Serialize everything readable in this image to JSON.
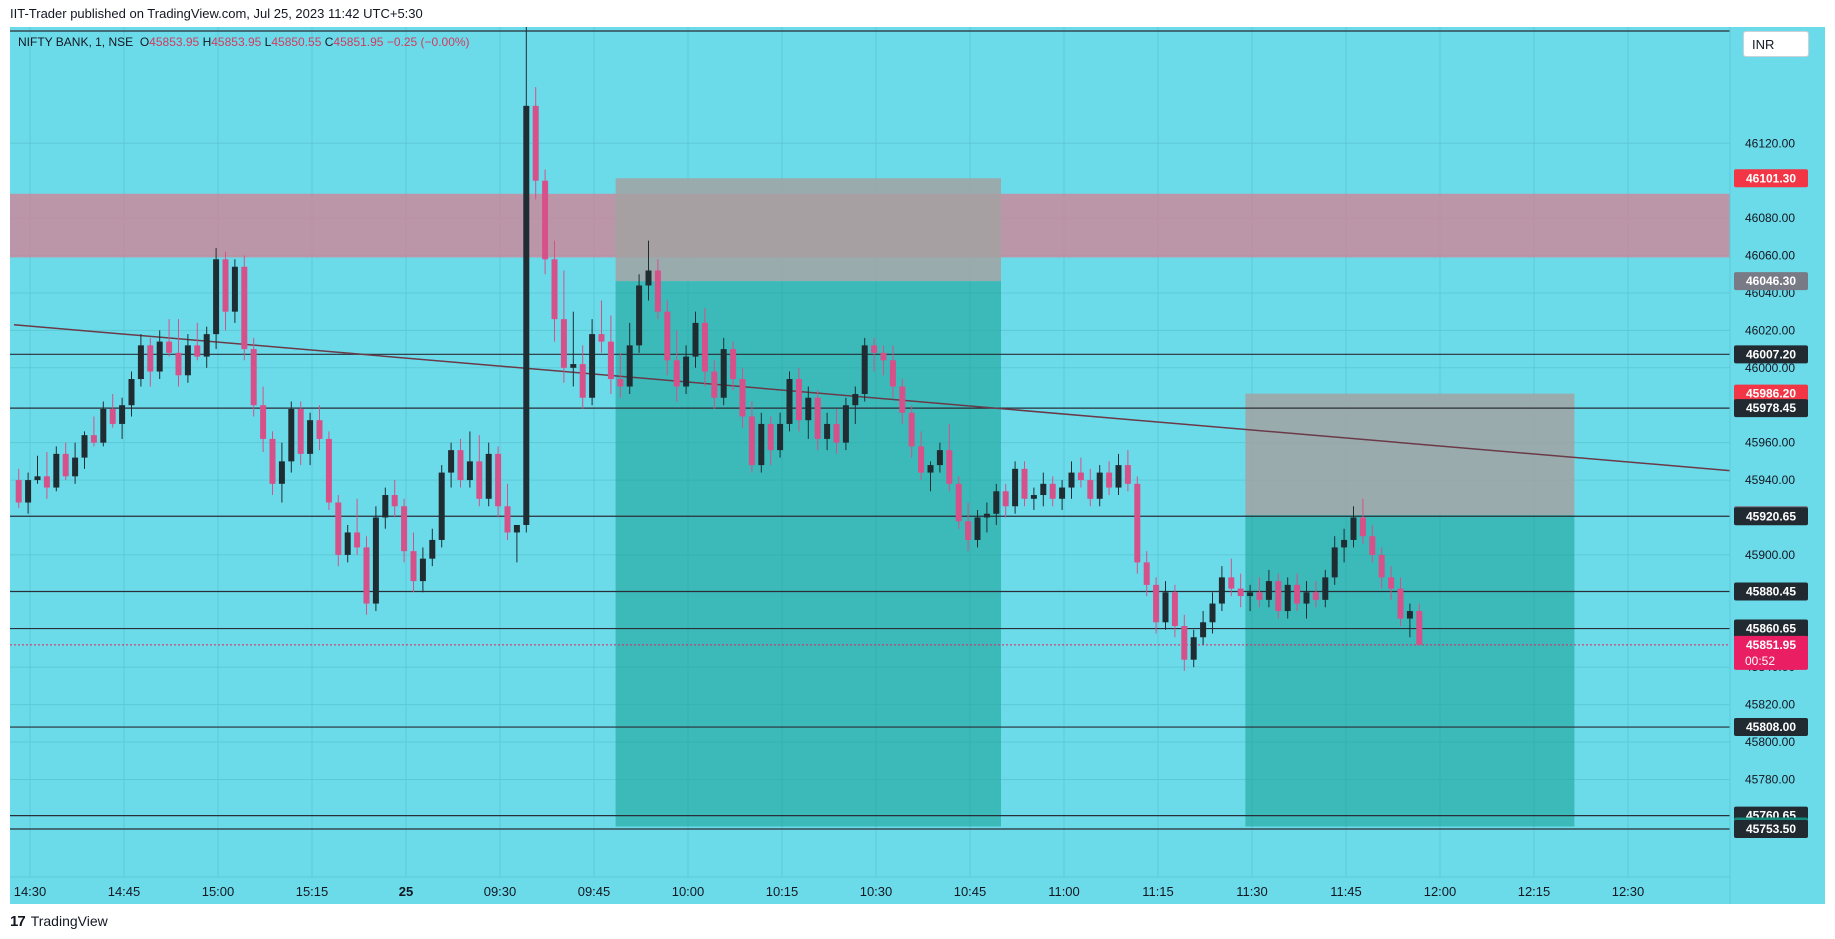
{
  "header": {
    "published": "IIT-Trader published on TradingView.com, Jul 25, 2023 11:42 UTC+5:30"
  },
  "footer": {
    "brand": "TradingView",
    "logo_glyph": "17"
  },
  "currency": "INR",
  "legend": {
    "symbol": "NIFTY BANK, 1, NSE",
    "o_label": "O",
    "o": "45853.95",
    "h_label": "H",
    "h": "45853.95",
    "l_label": "L",
    "l": "45850.55",
    "c_label": "C",
    "c": "45851.95",
    "change": "−0.25 (−0.00%)"
  },
  "colors": {
    "background": "#6bdbe9",
    "up": "#1f2d33",
    "down": "#d6508a",
    "resistance_zone": "#c98a9c",
    "target_zone": "#1aa39a",
    "stop_zone": "#a2a2a2",
    "label_red": "#f23645",
    "label_pink": "#e91e63",
    "label_dark": "#222a31",
    "label_grey": "#787b86",
    "label_green": "#12897a"
  },
  "chart_data": {
    "type": "candlestick",
    "symbol": "NIFTY BANK",
    "interval": "1",
    "ylim": [
      45730,
      46180
    ],
    "x_tick_labels": [
      "14:30",
      "14:45",
      "15:00",
      "15:15",
      "25",
      "09:30",
      "09:45",
      "10:00",
      "10:15",
      "10:30",
      "10:45",
      "11:00",
      "11:15",
      "11:30",
      "11:45",
      "12:00",
      "12:15",
      "12:30"
    ],
    "y_tick_labels": [
      "46120.00",
      "46080.00",
      "46060.00",
      "46040.00",
      "46020.00",
      "46000.00",
      "45960.00",
      "45940.00",
      "45900.00",
      "45840.00",
      "45820.00",
      "45800.00",
      "45780.00"
    ],
    "price_labels": [
      {
        "value": "46101.30",
        "style": "red"
      },
      {
        "value": "46046.30",
        "style": "grey"
      },
      {
        "value": "46007.20",
        "style": "dark"
      },
      {
        "value": "45986.20",
        "style": "red"
      },
      {
        "value": "45978.45",
        "style": "dark"
      },
      {
        "value": "45921.25",
        "style": "grey"
      },
      {
        "value": "45920.65",
        "style": "dark"
      },
      {
        "value": "45880.45",
        "style": "dark"
      },
      {
        "value": "45860.65",
        "style": "dark"
      },
      {
        "value": "45851.95",
        "style": "pink",
        "countdown": "00:52"
      },
      {
        "value": "45808.00",
        "style": "dark"
      },
      {
        "value": "45760.65",
        "style": "dark"
      },
      {
        "value": "45754.85",
        "style": "green"
      },
      {
        "value": "45753.50",
        "style": "dark"
      }
    ],
    "horizontal_lines": [
      46180,
      46007.2,
      45978.45,
      45920.65,
      45880.45,
      45860.65,
      45808,
      45760.65,
      45753.5
    ],
    "resistance_zone": [
      46059,
      46093
    ],
    "trendline": {
      "from": [
        0,
        46023
      ],
      "to": [
        185,
        45944
      ]
    },
    "positions": [
      {
        "bar_from": 64,
        "bar_to": 105,
        "entry": 46046.3,
        "stop": 46101.3,
        "target": 45754.85
      },
      {
        "bar_from": 131,
        "bar_to": 166,
        "entry": 45921.25,
        "stop": 45986.2,
        "target": 45754.85
      }
    ],
    "candles": [
      [
        45940,
        45946,
        45925,
        45928
      ],
      [
        45928,
        45944,
        45922,
        45940
      ],
      [
        45940,
        45953,
        45938,
        45942
      ],
      [
        45942,
        45955,
        45930,
        45936
      ],
      [
        45936,
        45958,
        45934,
        45954
      ],
      [
        45954,
        45960,
        45940,
        45942
      ],
      [
        45942,
        45960,
        45938,
        45952
      ],
      [
        45952,
        45966,
        45946,
        45964
      ],
      [
        45964,
        45974,
        45958,
        45960
      ],
      [
        45960,
        45982,
        45958,
        45978
      ],
      [
        45978,
        45986,
        45968,
        45970
      ],
      [
        45970,
        45984,
        45962,
        45980
      ],
      [
        45980,
        45998,
        45974,
        45994
      ],
      [
        45994,
        46018,
        45990,
        46012
      ],
      [
        46012,
        46016,
        45990,
        45998
      ],
      [
        45998,
        46020,
        45994,
        46014
      ],
      [
        46014,
        46026,
        46006,
        46008
      ],
      [
        46008,
        46026,
        45990,
        45996
      ],
      [
        45996,
        46018,
        45992,
        46012
      ],
      [
        46012,
        46024,
        46004,
        46006
      ],
      [
        46006,
        46022,
        46000,
        46018
      ],
      [
        46018,
        46064,
        46010,
        46058
      ],
      [
        46058,
        46062,
        46020,
        46030
      ],
      [
        46030,
        46058,
        46024,
        46054
      ],
      [
        46054,
        46060,
        46004,
        46010
      ],
      [
        46010,
        46016,
        45974,
        45980
      ],
      [
        45980,
        45990,
        45955,
        45962
      ],
      [
        45962,
        45966,
        45932,
        45938
      ],
      [
        45938,
        45960,
        45928,
        45950
      ],
      [
        45950,
        45982,
        45944,
        45978
      ],
      [
        45978,
        45982,
        45948,
        45954
      ],
      [
        45954,
        45976,
        45948,
        45972
      ],
      [
        45972,
        45980,
        45956,
        45962
      ],
      [
        45962,
        45966,
        45924,
        45928
      ],
      [
        45928,
        45932,
        45894,
        45900
      ],
      [
        45900,
        45916,
        45896,
        45912
      ],
      [
        45912,
        45930,
        45900,
        45904
      ],
      [
        45904,
        45910,
        45868,
        45874
      ],
      [
        45874,
        45926,
        45870,
        45920
      ],
      [
        45920,
        45936,
        45914,
        45932
      ],
      [
        45932,
        45940,
        45920,
        45926
      ],
      [
        45926,
        45930,
        45896,
        45902
      ],
      [
        45902,
        45912,
        45880,
        45886
      ],
      [
        45886,
        45904,
        45880,
        45898
      ],
      [
        45898,
        45914,
        45894,
        45908
      ],
      [
        45908,
        45948,
        45904,
        45944
      ],
      [
        45944,
        45960,
        45936,
        45956
      ],
      [
        45956,
        45962,
        45936,
        45940
      ],
      [
        45940,
        45966,
        45936,
        45950
      ],
      [
        45950,
        45964,
        45926,
        45930
      ],
      [
        45930,
        45960,
        45926,
        45954
      ],
      [
        45954,
        45958,
        45920,
        45926
      ],
      [
        45926,
        45938,
        45908,
        45912
      ],
      [
        45912,
        45916,
        45896,
        45916
      ],
      [
        45916,
        46240,
        45912,
        46140
      ],
      [
        46140,
        46150,
        46090,
        46100
      ],
      [
        46100,
        46106,
        46050,
        46058
      ],
      [
        46058,
        46068,
        46014,
        46026
      ],
      [
        46026,
        46052,
        45992,
        46000
      ],
      [
        46000,
        46030,
        45990,
        46002
      ],
      [
        46002,
        46012,
        45978,
        45984
      ],
      [
        45984,
        46026,
        45980,
        46018
      ],
      [
        46018,
        46036,
        46008,
        46014
      ],
      [
        46014,
        46028,
        45986,
        45994
      ],
      [
        45994,
        46008,
        45984,
        45990
      ],
      [
        45990,
        46024,
        45986,
        46012
      ],
      [
        46012,
        46050,
        46008,
        46044
      ],
      [
        46044,
        46068,
        46036,
        46052
      ],
      [
        46052,
        46058,
        46026,
        46030
      ],
      [
        46030,
        46036,
        45996,
        46004
      ],
      [
        46004,
        46020,
        45982,
        45990
      ],
      [
        45990,
        46012,
        45986,
        46006
      ],
      [
        46006,
        46030,
        46000,
        46024
      ],
      [
        46024,
        46032,
        45990,
        45998
      ],
      [
        45998,
        46004,
        45978,
        45984
      ],
      [
        45984,
        46016,
        45980,
        46010
      ],
      [
        46010,
        46014,
        45988,
        45994
      ],
      [
        45994,
        46000,
        45968,
        45974
      ],
      [
        45974,
        45982,
        45944,
        45948
      ],
      [
        45948,
        45976,
        45944,
        45970
      ],
      [
        45970,
        45974,
        45948,
        45956
      ],
      [
        45956,
        45976,
        45952,
        45970
      ],
      [
        45970,
        45998,
        45966,
        45994
      ],
      [
        45994,
        46000,
        45966,
        45972
      ],
      [
        45972,
        45990,
        45962,
        45984
      ],
      [
        45984,
        45988,
        45956,
        45962
      ],
      [
        45962,
        45976,
        45956,
        45970
      ],
      [
        45970,
        45978,
        45954,
        45960
      ],
      [
        45960,
        45984,
        45956,
        45980
      ],
      [
        45980,
        45990,
        45970,
        45986
      ],
      [
        45986,
        46016,
        45982,
        46012
      ],
      [
        46012,
        46016,
        45998,
        46008
      ],
      [
        46008,
        46012,
        45996,
        46004
      ],
      [
        46004,
        46012,
        45984,
        45990
      ],
      [
        45990,
        45994,
        45970,
        45976
      ],
      [
        45976,
        45980,
        45952,
        45958
      ],
      [
        45958,
        45966,
        45940,
        45944
      ],
      [
        45944,
        45950,
        45934,
        45948
      ],
      [
        45948,
        45960,
        45944,
        45956
      ],
      [
        45956,
        45970,
        45934,
        45938
      ],
      [
        45938,
        45942,
        45914,
        45918
      ],
      [
        45918,
        45928,
        45902,
        45908
      ],
      [
        45908,
        45924,
        45904,
        45920
      ],
      [
        45920,
        45928,
        45912,
        45922
      ],
      [
        45922,
        45938,
        45916,
        45934
      ],
      [
        45934,
        45938,
        45920,
        45926
      ],
      [
        45926,
        45950,
        45922,
        45946
      ],
      [
        45946,
        45950,
        45926,
        45930
      ],
      [
        45930,
        45936,
        45924,
        45932
      ],
      [
        45932,
        45944,
        45926,
        45938
      ],
      [
        45938,
        45942,
        45926,
        45930
      ],
      [
        45930,
        45940,
        45924,
        45936
      ],
      [
        45936,
        45950,
        45930,
        45944
      ],
      [
        45944,
        45952,
        45936,
        45940
      ],
      [
        45940,
        45946,
        45926,
        45930
      ],
      [
        45930,
        45948,
        45926,
        45944
      ],
      [
        45944,
        45950,
        45932,
        45936
      ],
      [
        45936,
        45954,
        45932,
        45948
      ],
      [
        45948,
        45956,
        45934,
        45938
      ],
      [
        45938,
        45942,
        45890,
        45896
      ],
      [
        45896,
        45902,
        45878,
        45884
      ],
      [
        45884,
        45888,
        45858,
        45864
      ],
      [
        45864,
        45886,
        45860,
        45880
      ],
      [
        45880,
        45884,
        45856,
        45862
      ],
      [
        45862,
        45868,
        45838,
        45844
      ],
      [
        45844,
        45860,
        45840,
        45856
      ],
      [
        45856,
        45870,
        45852,
        45864
      ],
      [
        45864,
        45880,
        45858,
        45874
      ],
      [
        45874,
        45894,
        45870,
        45888
      ],
      [
        45888,
        45898,
        45878,
        45882
      ],
      [
        45882,
        45890,
        45872,
        45878
      ],
      [
        45878,
        45884,
        45870,
        45880
      ],
      [
        45880,
        45888,
        45872,
        45876
      ],
      [
        45876,
        45892,
        45872,
        45886
      ],
      [
        45886,
        45890,
        45866,
        45870
      ],
      [
        45870,
        45888,
        45866,
        45884
      ],
      [
        45884,
        45890,
        45870,
        45874
      ],
      [
        45874,
        45886,
        45866,
        45880
      ],
      [
        45880,
        45886,
        45872,
        45876
      ],
      [
        45876,
        45892,
        45872,
        45888
      ],
      [
        45888,
        45910,
        45884,
        45904
      ],
      [
        45904,
        45914,
        45896,
        45908
      ],
      [
        45908,
        45926,
        45904,
        45920
      ],
      [
        45920,
        45930,
        45906,
        45910
      ],
      [
        45910,
        45916,
        45896,
        45900
      ],
      [
        45900,
        45904,
        45882,
        45888
      ],
      [
        45888,
        45894,
        45876,
        45882
      ],
      [
        45882,
        45888,
        45862,
        45866
      ],
      [
        45866,
        45874,
        45856,
        45870
      ],
      [
        45870,
        45874,
        45854,
        45852
      ]
    ]
  }
}
